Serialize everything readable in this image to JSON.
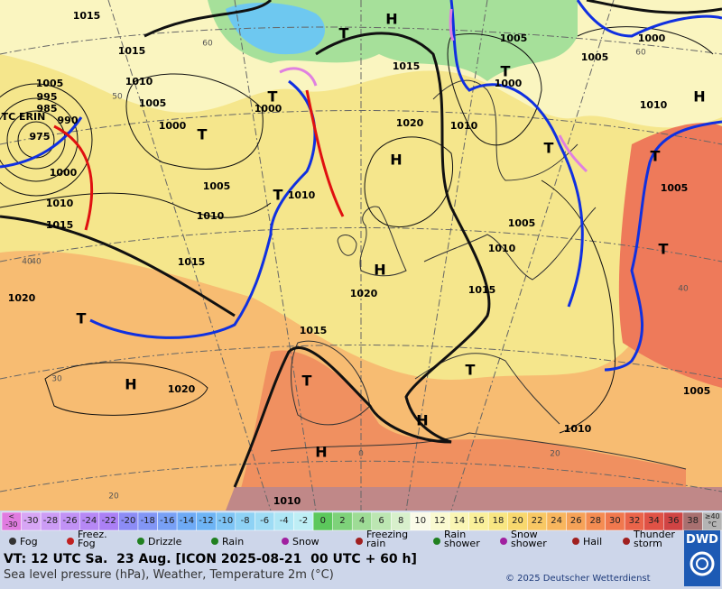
{
  "map": {
    "labels": [
      "1015",
      "1015",
      "1005",
      "995",
      "985",
      "TC ERIN",
      "990",
      "975",
      "1000",
      "1010",
      "1015",
      "1010",
      "1005",
      "1000",
      "T",
      "1005",
      "1010",
      "T",
      "1000",
      "T",
      "1010",
      "1015",
      "1020",
      "T",
      "H",
      "1020",
      "1015",
      "T",
      "H",
      "1010",
      "1015",
      "1020",
      "H",
      "H",
      "1020",
      "1015",
      "T",
      "H",
      "1005",
      "T",
      "1000",
      "1010",
      "T",
      "1005",
      "1010",
      "1000",
      "1005",
      "1010",
      "H",
      "T",
      "1005",
      "T",
      "1010",
      "1005",
      "T",
      "H"
    ],
    "graticule": [
      "60",
      "50",
      "40",
      "30",
      "20",
      "0",
      "20",
      "40",
      "60",
      "40"
    ]
  },
  "legend": {
    "scale": [
      {
        "label": "<\n-30",
        "color": "#e07be0"
      },
      {
        "label": "-30",
        "color": "#d7a6f5"
      },
      {
        "label": "-28",
        "color": "#cc9cf5"
      },
      {
        "label": "-26",
        "color": "#c192f5"
      },
      {
        "label": "-24",
        "color": "#b688f5"
      },
      {
        "label": "-22",
        "color": "#ab80f5"
      },
      {
        "label": "-20",
        "color": "#8c8cf5"
      },
      {
        "label": "-18",
        "color": "#8296f5"
      },
      {
        "label": "-16",
        "color": "#78a0f5"
      },
      {
        "label": "-14",
        "color": "#6eaaf5"
      },
      {
        "label": "-12",
        "color": "#6eb4f5"
      },
      {
        "label": "-10",
        "color": "#7ec4f5"
      },
      {
        "label": "-8",
        "color": "#8ed2f5"
      },
      {
        "label": "-6",
        "color": "#9edcf5"
      },
      {
        "label": "-4",
        "color": "#aee6f5"
      },
      {
        "label": "-2",
        "color": "#beeef5"
      },
      {
        "label": "0",
        "color": "#5cc85c"
      },
      {
        "label": "2",
        "color": "#7ed27a"
      },
      {
        "label": "4",
        "color": "#9edc96"
      },
      {
        "label": "6",
        "color": "#bce6b2"
      },
      {
        "label": "8",
        "color": "#d8f0cc"
      },
      {
        "label": "10",
        "color": "#fafae8"
      },
      {
        "label": "12",
        "color": "#fafad0"
      },
      {
        "label": "14",
        "color": "#faf5b4"
      },
      {
        "label": "16",
        "color": "#faf09a"
      },
      {
        "label": "18",
        "color": "#f8e682"
      },
      {
        "label": "20",
        "color": "#f8d86e"
      },
      {
        "label": "22",
        "color": "#f8c864"
      },
      {
        "label": "24",
        "color": "#f8b65e"
      },
      {
        "label": "26",
        "color": "#f6a258"
      },
      {
        "label": "28",
        "color": "#f48c52"
      },
      {
        "label": "30",
        "color": "#f0784e"
      },
      {
        "label": "32",
        "color": "#ea644a"
      },
      {
        "label": "34",
        "color": "#e05246"
      },
      {
        "label": "36",
        "color": "#d04444"
      },
      {
        "label": "38",
        "color": "#a87070"
      },
      {
        "label": "≥40\n°C",
        "color": "#b4b4b4"
      }
    ],
    "symbols": [
      "Fog",
      "Freez.\nFog",
      "Drizzle",
      "Rain",
      "Snow",
      "Freezing\nrain",
      "Rain\nshower",
      "Snow\nshower",
      "Hail",
      "Thunder\nstorm"
    ]
  },
  "footer": {
    "valid_time": "VT: 12 UTC Sa.  23 Aug. [ICON 2025-08-21  00 UTC + 60 h]",
    "description": "Sea level pressure (hPa), Weather, Temperature 2m (°C)",
    "copyright": "© 2025 Deutscher Wetterdienst",
    "logo": "DWD"
  }
}
